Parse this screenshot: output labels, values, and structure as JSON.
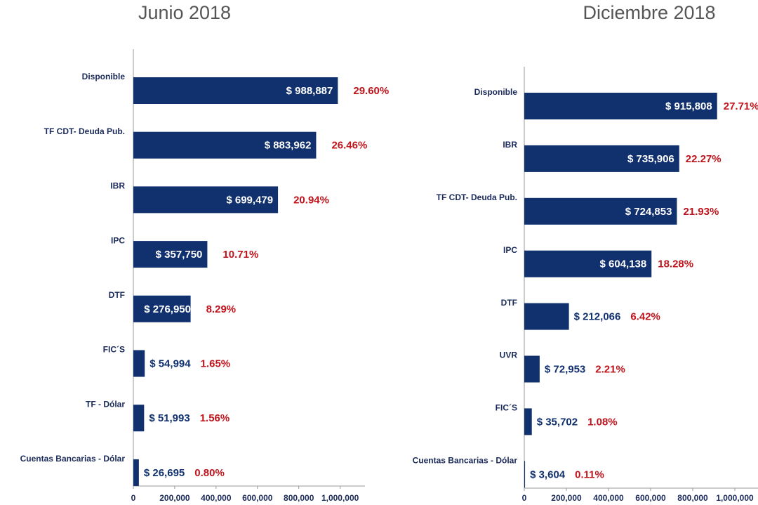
{
  "chart_data": [
    {
      "type": "bar",
      "orientation": "horizontal",
      "title": "Junio 2018",
      "categories": [
        "Disponible",
        "TF CDT- Deuda Pub.",
        "IBR",
        "IPC",
        "DTF",
        "FIC´S",
        "TF - Dólar",
        "Cuentas Bancarias - Dólar"
      ],
      "values": [
        988887,
        883962,
        699479,
        357750,
        276950,
        54994,
        51993,
        26695
      ],
      "value_labels": [
        "$ 988,887",
        "$ 883,962",
        "$ 699,479",
        "$ 357,750",
        "$ 276,950",
        "$ 54,994",
        "$ 51,993",
        "$ 26,695"
      ],
      "percentages": [
        29.6,
        26.46,
        20.94,
        10.71,
        8.29,
        1.65,
        1.56,
        0.8
      ],
      "percentage_labels": [
        "29.60%",
        "26.46%",
        "20.94%",
        "10.71%",
        "8.29%",
        "1.65%",
        "1.56%",
        "0.80%"
      ],
      "color": "#10306e",
      "percentage_color": "#c0141c",
      "xlim": [
        0,
        1120000
      ],
      "xticks": [
        0,
        {
          "value": 200000,
          "label": "200,000"
        },
        {
          "value": 400000,
          "label": "400,000"
        },
        {
          "value": 600000,
          "label": "600,000"
        },
        {
          "value": 800000,
          "label": "800,000"
        },
        {
          "value": 1000000,
          "label": "1,000,000"
        }
      ]
    },
    {
      "type": "bar",
      "orientation": "horizontal",
      "title": "Diciembre 2018",
      "categories": [
        "Disponible",
        "IBR",
        "TF CDT- Deuda Pub.",
        "IPC",
        "DTF",
        "UVR",
        "FIC´S",
        "Cuentas Bancarias - Dólar"
      ],
      "values": [
        915808,
        735906,
        724853,
        604138,
        212066,
        72953,
        35702,
        3604
      ],
      "value_labels": [
        "$ 915,808",
        "$ 735,906",
        "$ 724,853",
        "$ 604,138",
        "$ 212,066",
        "$ 72,953",
        "$ 35,702",
        "$ 3,604"
      ],
      "percentages": [
        27.71,
        22.27,
        21.93,
        18.28,
        6.42,
        2.21,
        1.08,
        0.11
      ],
      "percentage_labels": [
        "27.71%",
        "22.27%",
        "21.93%",
        "18.28%",
        "6.42%",
        "2.21%",
        "1.08%",
        "0.11%"
      ],
      "color": "#10306e",
      "percentage_color": "#c0141c",
      "xlim": [
        0,
        1110000
      ],
      "xticks": [
        0,
        {
          "value": 200000,
          "label": "200,000"
        },
        {
          "value": 400000,
          "label": "400,000"
        },
        {
          "value": 600000,
          "label": "600,000"
        },
        {
          "value": 800000,
          "label": "800,000"
        },
        {
          "value": 1000000,
          "label": "1,000,000"
        }
      ]
    }
  ]
}
